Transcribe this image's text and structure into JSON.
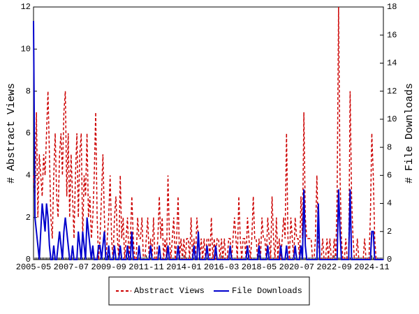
{
  "chart_data": {
    "type": "line",
    "categories": [
      "2005-05",
      null,
      null,
      null,
      null,
      null,
      null,
      null,
      null,
      null,
      null,
      null,
      null,
      null,
      null,
      null,
      null,
      null,
      null,
      null,
      null,
      null,
      null,
      null,
      null,
      null,
      "2007-07",
      null,
      null,
      null,
      null,
      null,
      null,
      null,
      null,
      null,
      null,
      null,
      null,
      null,
      null,
      null,
      null,
      null,
      null,
      null,
      null,
      null,
      null,
      null,
      null,
      null,
      "2009-09",
      null,
      null,
      null,
      null,
      null,
      null,
      null,
      null,
      null,
      null,
      null,
      null,
      null,
      null,
      null,
      null,
      null,
      null,
      null,
      null,
      null,
      null,
      null,
      null,
      null,
      "2011-11",
      null,
      null,
      null,
      null,
      null,
      null,
      null,
      null,
      null,
      null,
      null,
      null,
      null,
      null,
      null,
      null,
      null,
      null,
      null,
      null,
      null,
      null,
      null,
      null,
      null,
      "2014-01",
      null,
      null,
      null,
      null,
      null,
      null,
      null,
      null,
      null,
      null,
      null,
      null,
      null,
      null,
      null,
      null,
      null,
      null,
      null,
      null,
      null,
      null,
      null,
      null,
      null,
      "2016-03",
      null,
      null,
      null,
      null,
      null,
      null,
      null,
      null,
      null,
      null,
      null,
      null,
      null,
      null,
      null,
      null,
      null,
      null,
      null,
      null,
      null,
      null,
      null,
      null,
      null,
      "2018-05",
      null,
      null,
      null,
      null,
      null,
      null,
      null,
      null,
      null,
      null,
      null,
      null,
      null,
      null,
      null,
      null,
      null,
      null,
      null,
      null,
      null,
      null,
      null,
      null,
      null,
      "2020-07",
      null,
      null,
      null,
      null,
      null,
      null,
      null,
      null,
      null,
      null,
      null,
      null,
      null,
      null,
      null,
      null,
      null,
      null,
      null,
      null,
      null,
      null,
      null,
      null,
      null,
      "2022-09",
      null,
      null,
      null,
      null,
      null,
      null,
      null,
      null,
      null,
      null,
      null,
      null,
      null,
      null,
      null,
      null,
      null,
      null,
      null,
      null,
      null,
      null,
      null,
      null,
      null,
      "2024-11",
      null,
      null,
      null,
      null,
      null,
      null,
      null,
      null
    ],
    "ylabel": "# Abstract Views",
    "y2label": "# File Downloads",
    "ylim": [
      0,
      12
    ],
    "yticks": [
      0,
      2,
      4,
      6,
      8,
      10,
      12
    ],
    "y2lim": [
      0,
      18
    ],
    "y2ticks": [
      0,
      2,
      4,
      6,
      8,
      10,
      12,
      14,
      16,
      18
    ],
    "series": [
      {
        "name": "Abstract Views",
        "color": "#cc0000",
        "dashed": true,
        "values": [
          4,
          3,
          7,
          2,
          5,
          4,
          3,
          5,
          4,
          6,
          8,
          5,
          2,
          1,
          4,
          6,
          3,
          2,
          5,
          6,
          4,
          7,
          8,
          3,
          6,
          2,
          5,
          3,
          1,
          4,
          6,
          2,
          5,
          6,
          1,
          4,
          3,
          6,
          2,
          3,
          1,
          2,
          4,
          7,
          2,
          0,
          1,
          3,
          5,
          2,
          0,
          1,
          2,
          4,
          1,
          0,
          2,
          3,
          1,
          0,
          4,
          1,
          2,
          0,
          1,
          2,
          0,
          1,
          3,
          1,
          0,
          0,
          2,
          1,
          1,
          2,
          0,
          0,
          1,
          2,
          0,
          1,
          0,
          2,
          0,
          0,
          1,
          3,
          1,
          2,
          0,
          1,
          0,
          4,
          1,
          0,
          1,
          2,
          0,
          1,
          3,
          0,
          1,
          0,
          1,
          0,
          1,
          1,
          0,
          2,
          0,
          1,
          0,
          2,
          1,
          0,
          1,
          0,
          1,
          0,
          1,
          1,
          0,
          2,
          0,
          1,
          0,
          1,
          1,
          0,
          1,
          0,
          1,
          0,
          0,
          1,
          1,
          0,
          1,
          2,
          1,
          0,
          3,
          1,
          0,
          1,
          1,
          0,
          2,
          1,
          0,
          1,
          3,
          1,
          1,
          0,
          1,
          0,
          2,
          1,
          1,
          0,
          2,
          1,
          0,
          3,
          1,
          0,
          2,
          0,
          1,
          0,
          1,
          2,
          1,
          6,
          1,
          0,
          2,
          1,
          0,
          2,
          1,
          1,
          0,
          3,
          1,
          7,
          2,
          1,
          1,
          1,
          1,
          0,
          0,
          1,
          4,
          1,
          0,
          0,
          1,
          0,
          0,
          1,
          0,
          1,
          0,
          0,
          1,
          0,
          3,
          12,
          4,
          1,
          0,
          0,
          1,
          0,
          0,
          8,
          3,
          1,
          0,
          0,
          1,
          0,
          0,
          0,
          0,
          1,
          0,
          0,
          0,
          2,
          6,
          4,
          1,
          0,
          0,
          0,
          0,
          0,
          0
        ]
      },
      {
        "name": "File Downloads",
        "color": "#0000cc",
        "axis": "y2",
        "values": [
          17,
          3,
          2,
          1,
          0,
          2,
          4,
          3,
          2,
          4,
          3,
          1,
          0,
          0,
          1,
          0,
          0,
          1,
          2,
          1,
          0,
          2,
          3,
          2,
          1,
          0,
          0,
          1,
          0,
          0,
          0,
          2,
          1,
          0,
          2,
          1,
          0,
          3,
          2,
          1,
          0,
          1,
          0,
          0,
          0,
          1,
          1,
          0,
          1,
          2,
          0,
          0,
          1,
          0,
          0,
          0,
          1,
          0,
          0,
          0,
          1,
          0,
          0,
          0,
          0,
          1,
          0,
          0,
          2,
          0,
          0,
          0,
          0,
          1,
          0,
          0,
          0,
          0,
          0,
          0,
          0,
          1,
          0,
          0,
          0,
          0,
          0,
          1,
          0,
          0,
          0,
          0,
          0,
          1,
          0,
          0,
          0,
          0,
          0,
          0,
          1,
          0,
          0,
          0,
          0,
          0,
          0,
          0,
          0,
          0,
          0,
          1,
          0,
          0,
          2,
          0,
          0,
          0,
          0,
          0,
          1,
          0,
          0,
          0,
          0,
          0,
          1,
          0,
          0,
          0,
          0,
          0,
          0,
          0,
          0,
          0,
          1,
          0,
          0,
          0,
          0,
          0,
          0,
          0,
          0,
          0,
          0,
          0,
          1,
          0,
          0,
          0,
          0,
          0,
          0,
          0,
          1,
          0,
          0,
          0,
          0,
          0,
          1,
          0,
          0,
          0,
          0,
          0,
          0,
          0,
          0,
          1,
          0,
          0,
          0,
          1,
          0,
          0,
          0,
          0,
          0,
          1,
          0,
          0,
          0,
          1,
          0,
          5,
          1,
          0,
          0,
          0,
          0,
          0,
          0,
          0,
          0,
          4,
          0,
          0,
          0,
          0,
          0,
          0,
          0,
          0,
          0,
          0,
          0,
          0,
          0,
          5,
          2,
          0,
          0,
          0,
          0,
          0,
          0,
          5,
          0,
          0,
          0,
          0,
          0,
          0,
          0,
          0,
          0,
          0,
          0,
          0,
          0,
          0,
          2,
          2,
          0,
          0,
          0,
          0,
          0,
          0,
          0
        ]
      }
    ]
  }
}
